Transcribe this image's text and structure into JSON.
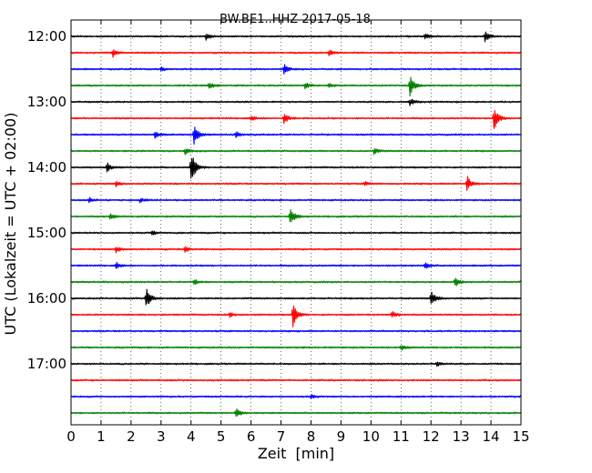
{
  "chart_data": {
    "type": "line",
    "title": "BW.BE1..HHZ 2017-05-18",
    "xlabel": "Zeit  [min]",
    "ylabel": "UTC (Lokalzeit = UTC + 02:00)",
    "xlim": [
      0,
      15
    ],
    "x_ticks": [
      "0",
      "1",
      "2",
      "3",
      "4",
      "5",
      "6",
      "7",
      "8",
      "9",
      "10",
      "11",
      "12",
      "13",
      "14",
      "15"
    ],
    "y_ticks": [
      "12:00",
      "13:00",
      "14:00",
      "15:00",
      "16:00",
      "17:00"
    ],
    "grid": "vertical dotted",
    "line_colors": [
      "#000000",
      "#ff0000",
      "#0000ff",
      "#008000"
    ],
    "traces": [
      {
        "start": "12:00",
        "events": [
          {
            "t": 4.5,
            "a": 0.5
          },
          {
            "t": 11.8,
            "a": 0.35
          },
          {
            "t": 13.8,
            "a": 0.7
          }
        ]
      },
      {
        "start": "12:15",
        "events": [
          {
            "t": 1.4,
            "a": 0.5
          },
          {
            "t": 8.6,
            "a": 0.4
          }
        ]
      },
      {
        "start": "12:30",
        "events": [
          {
            "t": 3.0,
            "a": 0.25
          },
          {
            "t": 7.1,
            "a": 0.6
          }
        ]
      },
      {
        "start": "12:45",
        "events": [
          {
            "t": 4.6,
            "a": 0.4
          },
          {
            "t": 7.8,
            "a": 0.4
          },
          {
            "t": 8.6,
            "a": 0.3
          },
          {
            "t": 11.3,
            "a": 1.3
          }
        ]
      },
      {
        "start": "13:00",
        "events": [
          {
            "t": 11.3,
            "a": 0.4
          }
        ]
      },
      {
        "start": "13:15",
        "events": [
          {
            "t": 6.0,
            "a": 0.35
          },
          {
            "t": 7.1,
            "a": 0.7
          },
          {
            "t": 14.1,
            "a": 1.8
          }
        ]
      },
      {
        "start": "13:30",
        "events": [
          {
            "t": 2.8,
            "a": 0.35
          },
          {
            "t": 4.1,
            "a": 1.2
          },
          {
            "t": 5.5,
            "a": 0.3
          }
        ]
      },
      {
        "start": "13:45",
        "events": [
          {
            "t": 3.8,
            "a": 0.4
          },
          {
            "t": 10.1,
            "a": 0.35
          }
        ]
      },
      {
        "start": "14:00",
        "events": [
          {
            "t": 1.2,
            "a": 0.6
          },
          {
            "t": 4.0,
            "a": 2.2
          }
        ]
      },
      {
        "start": "14:15",
        "events": [
          {
            "t": 1.5,
            "a": 0.3
          },
          {
            "t": 9.8,
            "a": 0.25
          },
          {
            "t": 13.2,
            "a": 1.0
          }
        ]
      },
      {
        "start": "14:30",
        "events": [
          {
            "t": 0.6,
            "a": 0.3
          },
          {
            "t": 2.3,
            "a": 0.25
          }
        ]
      },
      {
        "start": "14:45",
        "events": [
          {
            "t": 1.3,
            "a": 0.35
          },
          {
            "t": 7.3,
            "a": 1.1
          }
        ]
      },
      {
        "start": "15:00",
        "events": [
          {
            "t": 2.7,
            "a": 0.3
          }
        ]
      },
      {
        "start": "15:15",
        "events": [
          {
            "t": 1.5,
            "a": 0.4
          },
          {
            "t": 3.8,
            "a": 0.35
          }
        ]
      },
      {
        "start": "15:30",
        "events": [
          {
            "t": 1.5,
            "a": 0.4
          },
          {
            "t": 11.8,
            "a": 0.4
          }
        ]
      },
      {
        "start": "15:45",
        "events": [
          {
            "t": 4.1,
            "a": 0.3
          },
          {
            "t": 12.8,
            "a": 0.55
          }
        ]
      },
      {
        "start": "16:00",
        "events": [
          {
            "t": 2.5,
            "a": 1.3
          },
          {
            "t": 12.0,
            "a": 1.0
          }
        ]
      },
      {
        "start": "16:15",
        "events": [
          {
            "t": 5.3,
            "a": 0.3
          },
          {
            "t": 7.4,
            "a": 1.5
          },
          {
            "t": 10.7,
            "a": 0.4
          }
        ]
      },
      {
        "start": "16:30",
        "events": []
      },
      {
        "start": "16:45",
        "events": [
          {
            "t": 11.0,
            "a": 0.35
          }
        ]
      },
      {
        "start": "17:00",
        "events": [
          {
            "t": 12.2,
            "a": 0.3
          }
        ]
      },
      {
        "start": "17:15",
        "events": []
      },
      {
        "start": "17:30",
        "events": [
          {
            "t": 8.0,
            "a": 0.2
          }
        ]
      },
      {
        "start": "17:45",
        "events": [
          {
            "t": 5.5,
            "a": 0.6
          }
        ]
      }
    ]
  }
}
